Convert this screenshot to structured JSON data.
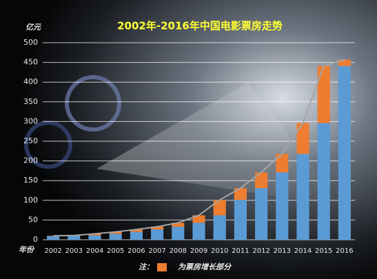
{
  "chart_data": {
    "type": "bar",
    "stacked": true,
    "title": "2002年-2016年中国电影票房走势",
    "y_label": "亿元",
    "x_label": "年份",
    "legend_prefix": "注：",
    "categories": [
      "2002",
      "2003",
      "2004",
      "2005",
      "2006",
      "2007",
      "2008",
      "2009",
      "2010",
      "2011",
      "2012",
      "2013",
      "2014",
      "2015",
      "2016"
    ],
    "series": [
      {
        "color": "#5b9bd5",
        "values": [
          9,
          10,
          11,
          15,
          20,
          26,
          33,
          43,
          62,
          101,
          131,
          171,
          218,
          296,
          441
        ]
      },
      {
        "name": "为票房增长部分",
        "color": "#ed7d31",
        "values": [
          1,
          1,
          4,
          5,
          6,
          7,
          10,
          19,
          39,
          30,
          40,
          47,
          78,
          145,
          16
        ]
      },
      {
        "type": "line",
        "color": "#a6a6a6",
        "values": [
          10,
          11,
          15,
          20,
          26,
          33,
          43,
          62,
          101,
          131,
          171,
          218,
          296,
          441,
          457
        ]
      }
    ],
    "ylim": [
      0,
      500
    ],
    "yticks": [
      0,
      50,
      100,
      150,
      200,
      250,
      300,
      350,
      400,
      450,
      500
    ],
    "grid": true
  }
}
